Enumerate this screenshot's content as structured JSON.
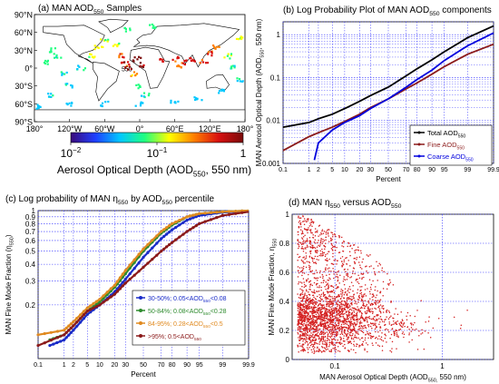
{
  "chart_data": [
    {
      "panel": "a",
      "type": "heatmap",
      "title": "(a) MAN AOD",
      "title_sub": "550",
      "title_tail": " Samples",
      "lat_ticks": [
        "90°N",
        "60°N",
        "30°N",
        "0°",
        "30°S",
        "60°S",
        "90°S"
      ],
      "lon_ticks": [
        "180°",
        "120°W",
        "60°W",
        "0°",
        "60°E",
        "120°E",
        "180°"
      ],
      "inline_label": "550",
      "colorbar": {
        "ticks": [
          "10",
          "10",
          "1"
        ],
        "tick_exps": [
          "−2",
          "−1",
          ""
        ],
        "label": "Aerosol Optical Depth (AOD",
        "label_sub": "550",
        "label_tail": ", 550 nm)",
        "colors": [
          "#3b0a7a",
          "#1f3fff",
          "#00c8ff",
          "#20ff80",
          "#ffff00",
          "#ff8000",
          "#d81010",
          "#7a0a0a"
        ]
      },
      "land_color": "#ffffff",
      "ocean_color": "#ffffff",
      "track_samples": [
        {
          "lon": -150,
          "lat": 30,
          "v": 0.08
        },
        {
          "lon": -140,
          "lat": 20,
          "v": 0.06
        },
        {
          "lon": -160,
          "lat": 10,
          "v": 0.07
        },
        {
          "lon": -130,
          "lat": -10,
          "v": 0.05
        },
        {
          "lon": -120,
          "lat": -30,
          "v": 0.05
        },
        {
          "lon": -100,
          "lat": 0,
          "v": 0.06
        },
        {
          "lon": -80,
          "lat": 20,
          "v": 0.12
        },
        {
          "lon": -70,
          "lat": 35,
          "v": 0.15
        },
        {
          "lon": -60,
          "lat": 45,
          "v": 0.1
        },
        {
          "lon": -40,
          "lat": 40,
          "v": 0.12
        },
        {
          "lon": -30,
          "lat": 20,
          "v": 0.3
        },
        {
          "lon": -25,
          "lat": 10,
          "v": 0.5
        },
        {
          "lon": -20,
          "lat": 0,
          "v": 0.35
        },
        {
          "lon": -10,
          "lat": -10,
          "v": 0.2
        },
        {
          "lon": 0,
          "lat": -30,
          "v": 0.08
        },
        {
          "lon": 10,
          "lat": -45,
          "v": 0.06
        },
        {
          "lon": 40,
          "lat": 15,
          "v": 0.4
        },
        {
          "lon": 60,
          "lat": 15,
          "v": 0.35
        },
        {
          "lon": 70,
          "lat": 5,
          "v": 0.25
        },
        {
          "lon": 80,
          "lat": 10,
          "v": 0.45
        },
        {
          "lon": 90,
          "lat": 15,
          "v": 0.5
        },
        {
          "lon": 110,
          "lat": 10,
          "v": 0.3
        },
        {
          "lon": 120,
          "lat": 25,
          "v": 0.35
        },
        {
          "lon": 130,
          "lat": 35,
          "v": 0.25
        },
        {
          "lon": 150,
          "lat": 20,
          "v": 0.1
        },
        {
          "lon": 160,
          "lat": 0,
          "v": 0.06
        },
        {
          "lon": 170,
          "lat": -20,
          "v": 0.05
        },
        {
          "lon": 140,
          "lat": -40,
          "v": 0.05
        },
        {
          "lon": 100,
          "lat": -50,
          "v": 0.04
        },
        {
          "lon": 60,
          "lat": -55,
          "v": 0.04
        },
        {
          "lon": 0,
          "lat": -60,
          "v": 0.04
        },
        {
          "lon": -60,
          "lat": -60,
          "v": 0.04
        },
        {
          "lon": -120,
          "lat": -60,
          "v": 0.04
        },
        {
          "lon": -170,
          "lat": -65,
          "v": 0.04
        },
        {
          "lon": -150,
          "lat": -45,
          "v": 0.05
        },
        {
          "lon": 20,
          "lat": 70,
          "v": 0.08
        },
        {
          "lon": -20,
          "lat": 65,
          "v": 0.07
        },
        {
          "lon": 170,
          "lat": 50,
          "v": 0.12
        },
        {
          "lon": -5,
          "lat": 15,
          "v": 0.7
        },
        {
          "lon": 5,
          "lat": 5,
          "v": 0.6
        }
      ]
    },
    {
      "panel": "b",
      "type": "line",
      "title": "(b) Log Probability Plot of MAN AOD",
      "title_sub": "550",
      "title_tail": " components",
      "xlabel": "Percent",
      "ylabel": "MAN Aerosol Optical Depth (AOD",
      "ylabel_sub": "550",
      "ylabel_tail": ", 550 nm)",
      "x_ticks": [
        "0.1",
        "1",
        "2",
        "5",
        "10",
        "20",
        "30",
        "50",
        "70",
        "80",
        "90",
        "95",
        "99",
        "99.9"
      ],
      "y_ticks": [
        "0.001",
        "0.01",
        "0.1",
        "1"
      ],
      "ylim": [
        0.001,
        2
      ],
      "grid": true,
      "legend": "bottom-right",
      "series": [
        {
          "name": "Total AOD",
          "name_sub": "550",
          "color": "#000000",
          "x": [
            0.1,
            1,
            2,
            5,
            10,
            20,
            30,
            50,
            70,
            80,
            90,
            95,
            99,
            99.9
          ],
          "y": [
            0.007,
            0.009,
            0.011,
            0.014,
            0.019,
            0.028,
            0.038,
            0.06,
            0.11,
            0.16,
            0.26,
            0.4,
            0.85,
            1.6
          ]
        },
        {
          "name": "Fine AOD",
          "name_sub": "550",
          "color": "#8b1a1a",
          "x": [
            0.1,
            1,
            2,
            5,
            10,
            20,
            30,
            50,
            70,
            80,
            90,
            95,
            99,
            99.9
          ],
          "y": [
            0.002,
            0.0042,
            0.0052,
            0.007,
            0.0095,
            0.014,
            0.02,
            0.032,
            0.055,
            0.075,
            0.12,
            0.18,
            0.35,
            0.6
          ]
        },
        {
          "name": "Coarse AOD",
          "name_sub": "550",
          "color": "#0000dd",
          "x": [
            1.5,
            2,
            5,
            10,
            20,
            30,
            50,
            70,
            80,
            90,
            95,
            99,
            99.9
          ],
          "y": [
            0.0012,
            0.003,
            0.006,
            0.009,
            0.013,
            0.019,
            0.032,
            0.06,
            0.09,
            0.15,
            0.25,
            0.55,
            1.1
          ]
        }
      ]
    },
    {
      "panel": "c",
      "type": "line",
      "title": "(c) Log probability of MAN η",
      "title_sub": "550",
      "title_mid": " by AOD",
      "title_sub2": "550",
      "title_tail": " percentile",
      "xlabel": "Percent",
      "ylabel": "MAN Fine Mode Fraction (η",
      "ylabel_sub": "550",
      "ylabel_tail": ")",
      "x_ticks": [
        "0.1",
        "1",
        "2",
        "5",
        "10",
        "20",
        "30",
        "50",
        "70",
        "80",
        "90",
        "95",
        "99",
        "99.9"
      ],
      "y_ticks": [
        "0.2",
        "0.3",
        "0.4",
        "0.5",
        "0.6",
        "0.7",
        "0.8",
        "0.9",
        "1"
      ],
      "ylim": [
        0.08,
        1
      ],
      "grid": true,
      "legend": "bottom-right",
      "series": [
        {
          "name_parts": [
            "30-50%; 0.05<AOD",
            "550",
            "<0.08"
          ],
          "color": "#1a2cc8",
          "x": [
            0.3,
            1,
            2,
            5,
            10,
            20,
            30,
            50,
            70,
            80,
            90,
            95,
            99,
            99.9
          ],
          "y": [
            0.1,
            0.11,
            0.13,
            0.17,
            0.2,
            0.25,
            0.31,
            0.45,
            0.62,
            0.72,
            0.85,
            0.92,
            0.97,
            0.99
          ]
        },
        {
          "name_parts": [
            "50-84%; 0.08<AOD",
            "550",
            "<0.28"
          ],
          "color": "#2e8b2e",
          "x": [
            0.3,
            1,
            2,
            5,
            10,
            20,
            30,
            50,
            70,
            80,
            90,
            95,
            99,
            99.9
          ],
          "y": [
            0.11,
            0.12,
            0.14,
            0.18,
            0.21,
            0.27,
            0.34,
            0.5,
            0.68,
            0.78,
            0.9,
            0.95,
            0.98,
            1.0
          ]
        },
        {
          "name_parts": [
            "84-95%; 0.28<AOD",
            "550",
            "<0.5"
          ],
          "color": "#e08a20",
          "x": [
            0.1,
            1,
            2,
            5,
            10,
            20,
            30,
            50,
            70,
            80,
            90,
            95,
            99,
            99.9
          ],
          "y": [
            0.12,
            0.13,
            0.15,
            0.19,
            0.22,
            0.28,
            0.36,
            0.52,
            0.7,
            0.8,
            0.9,
            0.95,
            0.98,
            1.0
          ]
        },
        {
          "name_parts": [
            ">95%; 0.5<AOD",
            "550",
            ""
          ],
          "color": "#8b1a1a",
          "x": [
            0.1,
            1,
            2,
            5,
            10,
            20,
            30,
            50,
            70,
            80,
            90,
            95,
            99,
            99.9
          ],
          "y": [
            0.1,
            0.12,
            0.14,
            0.18,
            0.2,
            0.24,
            0.29,
            0.38,
            0.5,
            0.58,
            0.7,
            0.8,
            0.92,
            0.98
          ]
        }
      ]
    },
    {
      "panel": "d",
      "type": "scatter",
      "title": "(d) MAN η",
      "title_sub": "550",
      "title_mid": " versus AOD",
      "title_sub2": "550",
      "title_tail": "",
      "xlabel": "MAN Aerosol Optical Depth (AOD",
      "xlabel_sub": "550,",
      "xlabel_tail": " 550 nm)",
      "ylabel": "MAN Fine Mode Fraction, η",
      "ylabel_sub": "550",
      "x_ticks": [
        "0.1",
        "1"
      ],
      "y_ticks": [
        "0",
        "0.2",
        "0.4",
        "0.6",
        "0.8",
        "1"
      ],
      "xlim": [
        0.04,
        3
      ],
      "ylim": [
        0,
        1
      ],
      "grid": true,
      "color": "#d42020"
    }
  ]
}
